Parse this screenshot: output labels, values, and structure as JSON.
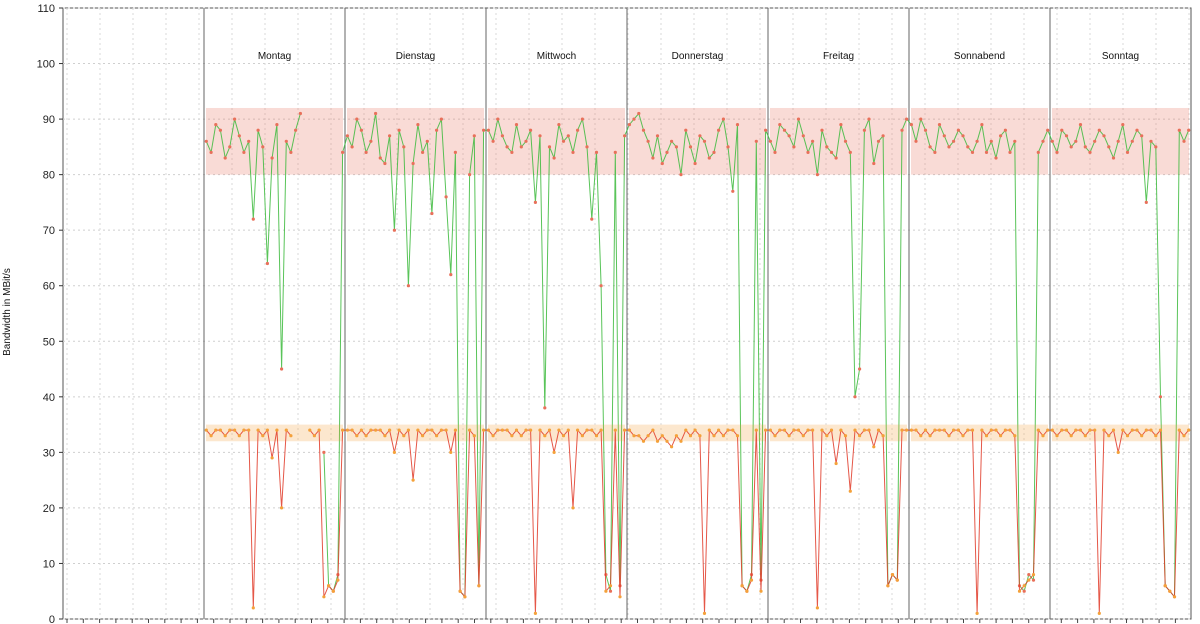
{
  "chart_data": {
    "type": "line",
    "title": "",
    "xlabel": "",
    "ylabel": "Bandwidth in MBit/s",
    "ylim": [
      0,
      110
    ],
    "yticks": [
      0,
      10,
      20,
      30,
      40,
      50,
      60,
      70,
      80,
      90,
      100,
      110
    ],
    "grid": true,
    "legend": "none",
    "days": [
      "Montag",
      "Dienstag",
      "Mittwoch",
      "Donnerstag",
      "Freitag",
      "Sonnabend",
      "Sonntag"
    ],
    "series": [
      {
        "color": "#3cba3c",
        "marker_color": "#e8705a",
        "typical_range": [
          80,
          92
        ],
        "values": [
          [
            86,
            84,
            89,
            88,
            83,
            85,
            90,
            87,
            84,
            86,
            72,
            88,
            85,
            64,
            83,
            89,
            45,
            86,
            84,
            88,
            91,
            null,
            null,
            null,
            null,
            30,
            6,
            5,
            8,
            84
          ],
          [
            87,
            85,
            90,
            88,
            84,
            86,
            91,
            83,
            82,
            87,
            70,
            88,
            85,
            60,
            82,
            89,
            84,
            86,
            73,
            88,
            90,
            76,
            62,
            84,
            5,
            4,
            80,
            87,
            6,
            88
          ],
          [
            88,
            86,
            90,
            87,
            85,
            84,
            89,
            85,
            86,
            88,
            75,
            87,
            38,
            85,
            83,
            89,
            86,
            87,
            84,
            88,
            90,
            85,
            72,
            84,
            60,
            8,
            5,
            84,
            6,
            87
          ],
          [
            89,
            90,
            91,
            88,
            86,
            83,
            87,
            82,
            84,
            86,
            85,
            80,
            88,
            85,
            82,
            87,
            86,
            83,
            84,
            88,
            90,
            85,
            77,
            89,
            6,
            5,
            8,
            86,
            7,
            88
          ],
          [
            86,
            84,
            89,
            88,
            87,
            85,
            90,
            87,
            84,
            86,
            80,
            88,
            85,
            84,
            83,
            89,
            86,
            84,
            40,
            45,
            88,
            90,
            82,
            86,
            87,
            6,
            8,
            7,
            88,
            90
          ],
          [
            89,
            86,
            90,
            88,
            85,
            84,
            89,
            87,
            85,
            86,
            88,
            87,
            85,
            84,
            86,
            89,
            84,
            86,
            83,
            87,
            88,
            84,
            86,
            6,
            5,
            8,
            7,
            84,
            86,
            88
          ],
          [
            86,
            84,
            88,
            87,
            85,
            86,
            89,
            85,
            84,
            86,
            88,
            87,
            85,
            83,
            86,
            89,
            84,
            86,
            88,
            87,
            75,
            86,
            85,
            40,
            6,
            5,
            4,
            88,
            86,
            88
          ]
        ]
      },
      {
        "color": "#e03a28",
        "marker_color": "#f4a13a",
        "typical_range": [
          32,
          35
        ],
        "values": [
          [
            34,
            33,
            34,
            34,
            33,
            34,
            34,
            33,
            34,
            34,
            2,
            34,
            33,
            34,
            29,
            34,
            20,
            34,
            33,
            null,
            null,
            null,
            34,
            33,
            34,
            4,
            6,
            5,
            7,
            34
          ],
          [
            34,
            34,
            33,
            34,
            33,
            34,
            34,
            34,
            33,
            34,
            30,
            34,
            33,
            34,
            25,
            34,
            33,
            34,
            34,
            33,
            34,
            34,
            30,
            34,
            5,
            4,
            34,
            33,
            6,
            34
          ],
          [
            34,
            33,
            34,
            34,
            34,
            33,
            34,
            33,
            34,
            34,
            1,
            34,
            33,
            34,
            30,
            34,
            33,
            34,
            20,
            34,
            33,
            34,
            34,
            33,
            34,
            5,
            6,
            34,
            4,
            34
          ],
          [
            34,
            33,
            33,
            32,
            33,
            34,
            32,
            33,
            32,
            31,
            33,
            32,
            34,
            33,
            34,
            33,
            1,
            34,
            33,
            34,
            33,
            34,
            34,
            33,
            6,
            5,
            7,
            34,
            5,
            34
          ],
          [
            34,
            33,
            34,
            34,
            33,
            34,
            34,
            33,
            34,
            34,
            2,
            34,
            33,
            34,
            28,
            34,
            33,
            23,
            34,
            33,
            34,
            34,
            31,
            34,
            33,
            6,
            8,
            7,
            34,
            34
          ],
          [
            34,
            34,
            33,
            34,
            33,
            34,
            34,
            34,
            33,
            34,
            34,
            33,
            34,
            34,
            1,
            34,
            33,
            34,
            34,
            33,
            34,
            34,
            33,
            5,
            6,
            7,
            8,
            34,
            33,
            34
          ],
          [
            34,
            33,
            34,
            34,
            33,
            34,
            34,
            33,
            34,
            34,
            1,
            34,
            33,
            34,
            30,
            34,
            33,
            34,
            34,
            33,
            34,
            34,
            33,
            34,
            6,
            5,
            4,
            34,
            33,
            34
          ]
        ]
      }
    ]
  }
}
